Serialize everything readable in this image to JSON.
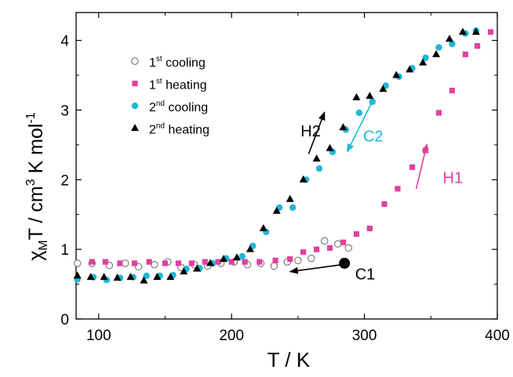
{
  "chart_data": {
    "type": "scatter",
    "xlabel": "T / K",
    "ylabel": {
      "chi": "χ",
      "sub": "M",
      "mid": "T / cm",
      "sup3": "3",
      "tail": " K mol",
      "sup": "-1"
    },
    "xlim": [
      83,
      400
    ],
    "ylim": [
      0,
      4.4
    ],
    "xticks": [
      100,
      200,
      300,
      400
    ],
    "yticks": [
      0,
      1,
      2,
      3,
      4
    ],
    "grid": false,
    "legend_position": "top-left",
    "series": [
      {
        "name": "1st cooling",
        "legend": {
          "pre": "1",
          "sup": "st",
          "post": " cooling"
        },
        "marker": "open-circle",
        "color": "#666666",
        "points": [
          [
            84,
            0.8
          ],
          [
            95,
            0.8
          ],
          [
            108,
            0.77
          ],
          [
            120,
            0.8
          ],
          [
            130,
            0.75
          ],
          [
            142,
            0.78
          ],
          [
            152,
            0.82
          ],
          [
            162,
            0.74
          ],
          [
            172,
            0.78
          ],
          [
            182,
            0.76
          ],
          [
            192,
            0.8
          ],
          [
            202,
            0.82
          ],
          [
            212,
            0.78
          ],
          [
            222,
            0.8
          ],
          [
            232,
            0.76
          ],
          [
            242,
            0.82
          ],
          [
            250,
            0.84
          ],
          [
            260,
            0.87
          ],
          [
            270,
            1.12
          ],
          [
            280,
            1.08
          ],
          [
            288,
            1.02
          ]
        ]
      },
      {
        "name": "1st heating",
        "legend": {
          "pre": "1",
          "sup": "st",
          "post": " heating"
        },
        "marker": "square",
        "color": "#e040a0",
        "points": [
          [
            95,
            0.82
          ],
          [
            105,
            0.82
          ],
          [
            116,
            0.8
          ],
          [
            127,
            0.8
          ],
          [
            138,
            0.82
          ],
          [
            150,
            0.8
          ],
          [
            160,
            0.8
          ],
          [
            170,
            0.8
          ],
          [
            180,
            0.82
          ],
          [
            190,
            0.82
          ],
          [
            200,
            0.82
          ],
          [
            210,
            0.82
          ],
          [
            221,
            0.82
          ],
          [
            233,
            0.84
          ],
          [
            244,
            0.86
          ],
          [
            254,
            0.96
          ],
          [
            264,
            1.0
          ],
          [
            274,
            1.02
          ],
          [
            284,
            1.1
          ],
          [
            294,
            1.22
          ],
          [
            304,
            1.3
          ],
          [
            315,
            1.65
          ],
          [
            325,
            1.87
          ],
          [
            336,
            2.18
          ],
          [
            346,
            2.42
          ],
          [
            356,
            2.96
          ],
          [
            366,
            3.28
          ],
          [
            376,
            3.8
          ],
          [
            385,
            3.92
          ],
          [
            395,
            4.12
          ]
        ]
      },
      {
        "name": "2nd cooling",
        "legend": {
          "pre": "2",
          "sup": "nd",
          "post": " cooling"
        },
        "marker": "filled-circle",
        "color": "#1eb8d8",
        "points": [
          [
            84,
            0.57
          ],
          [
            96,
            0.6
          ],
          [
            106,
            0.56
          ],
          [
            116,
            0.59
          ],
          [
            126,
            0.6
          ],
          [
            136,
            0.62
          ],
          [
            146,
            0.62
          ],
          [
            156,
            0.63
          ],
          [
            166,
            0.72
          ],
          [
            176,
            0.73
          ],
          [
            186,
            0.8
          ],
          [
            196,
            0.87
          ],
          [
            208,
            0.9
          ],
          [
            216,
            1.05
          ],
          [
            226,
            1.25
          ],
          [
            236,
            1.6
          ],
          [
            246,
            1.6
          ],
          [
            256,
            2.0
          ],
          [
            266,
            2.16
          ],
          [
            276,
            2.4
          ],
          [
            286,
            2.72
          ],
          [
            296,
            2.96
          ],
          [
            306,
            3.12
          ],
          [
            316,
            3.35
          ],
          [
            326,
            3.48
          ],
          [
            336,
            3.6
          ],
          [
            346,
            3.75
          ],
          [
            356,
            3.9
          ],
          [
            366,
            3.95
          ],
          [
            376,
            4.1
          ],
          [
            384,
            4.14
          ]
        ]
      },
      {
        "name": "2nd heating",
        "legend": {
          "pre": "2",
          "sup": "nd",
          "post": " heating"
        },
        "marker": "filled-triangle",
        "color": "#000000",
        "points": [
          [
            84,
            0.62
          ],
          [
            94,
            0.6
          ],
          [
            104,
            0.6
          ],
          [
            114,
            0.59
          ],
          [
            124,
            0.6
          ],
          [
            134,
            0.55
          ],
          [
            144,
            0.6
          ],
          [
            154,
            0.6
          ],
          [
            164,
            0.68
          ],
          [
            174,
            0.72
          ],
          [
            184,
            0.8
          ],
          [
            194,
            0.86
          ],
          [
            204,
            0.88
          ],
          [
            214,
            1.0
          ],
          [
            224,
            1.3
          ],
          [
            234,
            1.55
          ],
          [
            244,
            1.72
          ],
          [
            254,
            2.0
          ],
          [
            264,
            2.3
          ],
          [
            274,
            2.45
          ],
          [
            284,
            2.75
          ],
          [
            294,
            3.18
          ],
          [
            304,
            3.2
          ],
          [
            314,
            3.3
          ],
          [
            324,
            3.5
          ],
          [
            334,
            3.58
          ],
          [
            344,
            3.68
          ],
          [
            354,
            3.8
          ],
          [
            364,
            4.02
          ],
          [
            374,
            4.12
          ],
          [
            384,
            4.12
          ]
        ]
      }
    ],
    "annotations": [
      {
        "text": "H2",
        "color": "#000000",
        "label_at": [
          252,
          2.62
        ],
        "arrow_from": [
          258,
          2.37
        ],
        "arrow_to": [
          270,
          2.97
        ]
      },
      {
        "text": "C2",
        "color": "#1eb8d8",
        "label_at": [
          299,
          2.55
        ],
        "arrow_from": [
          305,
          3.09
        ],
        "arrow_to": [
          287,
          2.4
        ]
      },
      {
        "text": "H1",
        "color": "#e040a0",
        "label_at": [
          359,
          1.95
        ],
        "arrow_from": [
          339,
          1.87
        ],
        "arrow_to": [
          347,
          2.51
        ]
      },
      {
        "text": "C1",
        "color": "#000000",
        "label_at": [
          293,
          0.57
        ],
        "arrow_from": [
          283,
          0.78
        ],
        "arrow_to": [
          244,
          0.68
        ]
      }
    ],
    "marker_point": [
      285,
      0.8
    ]
  }
}
